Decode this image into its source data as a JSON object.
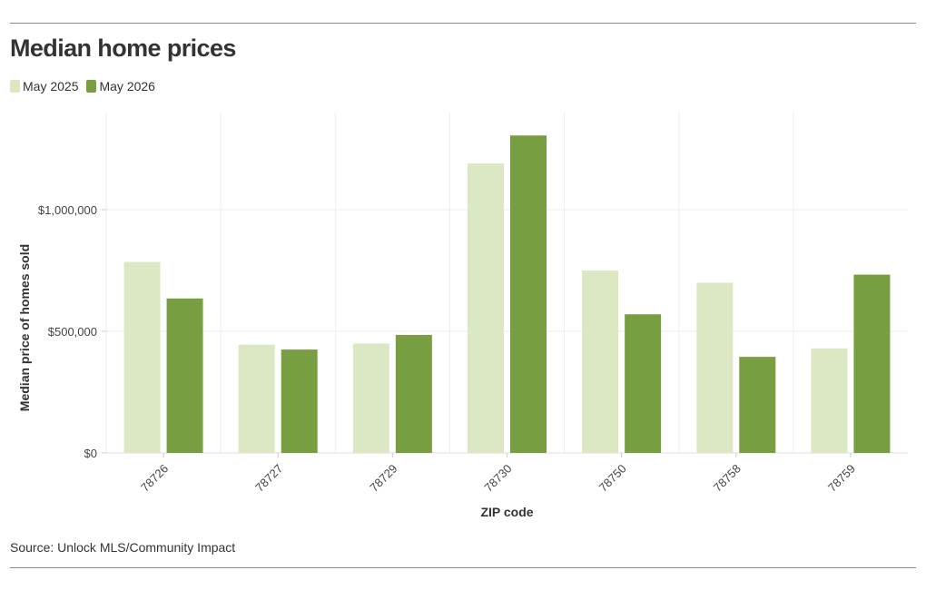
{
  "title": "Median home prices",
  "source": "Source: Unlock MLS/Community Impact",
  "colors": {
    "May 2025": "#dce8c4",
    "May 2026": "#779f42"
  },
  "chart_data": {
    "type": "bar",
    "title": "Median home prices",
    "xlabel": "ZIP code",
    "ylabel": "Median price of homes sold",
    "categories": [
      "78726",
      "78727",
      "78729",
      "78730",
      "78750",
      "78758",
      "78759"
    ],
    "series": [
      {
        "name": "May 2025",
        "values": [
          785000,
          445000,
          450000,
          1190000,
          750000,
          700000,
          430000
        ]
      },
      {
        "name": "May 2026",
        "values": [
          635000,
          425000,
          485000,
          1305000,
          570000,
          395000,
          733000
        ]
      }
    ],
    "y_ticks": [
      0,
      500000,
      1000000
    ],
    "y_tick_labels": [
      "$0",
      "$500,000",
      "$1,000,000"
    ],
    "ylim": [
      0,
      1400000
    ],
    "grid": true,
    "legend": "top-left"
  }
}
